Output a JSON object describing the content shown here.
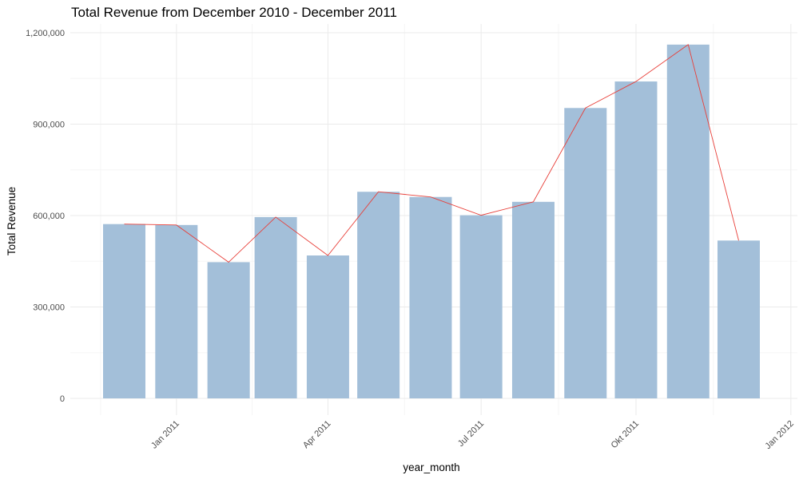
{
  "chart_data": {
    "type": "bar",
    "title": "Total Revenue from December 2010 - December 2011",
    "xlabel": "year_month",
    "ylabel": "Total Revenue",
    "categories": [
      "2010-12",
      "2011-01",
      "2011-02",
      "2011-03",
      "2011-04",
      "2011-05",
      "2011-06",
      "2011-07",
      "2011-08",
      "2011-09",
      "2011-10",
      "2011-11",
      "2011-12"
    ],
    "values": [
      572000,
      569000,
      447000,
      595000,
      469000,
      678000,
      661000,
      601000,
      645000,
      953000,
      1040000,
      1161000,
      518000
    ],
    "line_overlay": true,
    "ylim": [
      0,
      1200000
    ],
    "y_ticks": [
      0,
      300000,
      600000,
      900000,
      1200000
    ],
    "y_tick_labels": [
      "0",
      "300,000",
      "600,000",
      "900,000",
      "1,200,000"
    ],
    "x_ticks": [
      "2011-01-01",
      "2011-04-01",
      "2011-07-01",
      "2011-10-01",
      "2012-01-01"
    ],
    "x_tick_labels": [
      "Jan 2011",
      "Apr 2011",
      "Jul 2011",
      "Okt 2011",
      "Jan 2012"
    ],
    "grid": true,
    "colors": {
      "bar": "#a3bfd9",
      "line": "#e8403a",
      "grid_major": "#ebebeb",
      "grid_minor": "#f5f5f5"
    }
  }
}
